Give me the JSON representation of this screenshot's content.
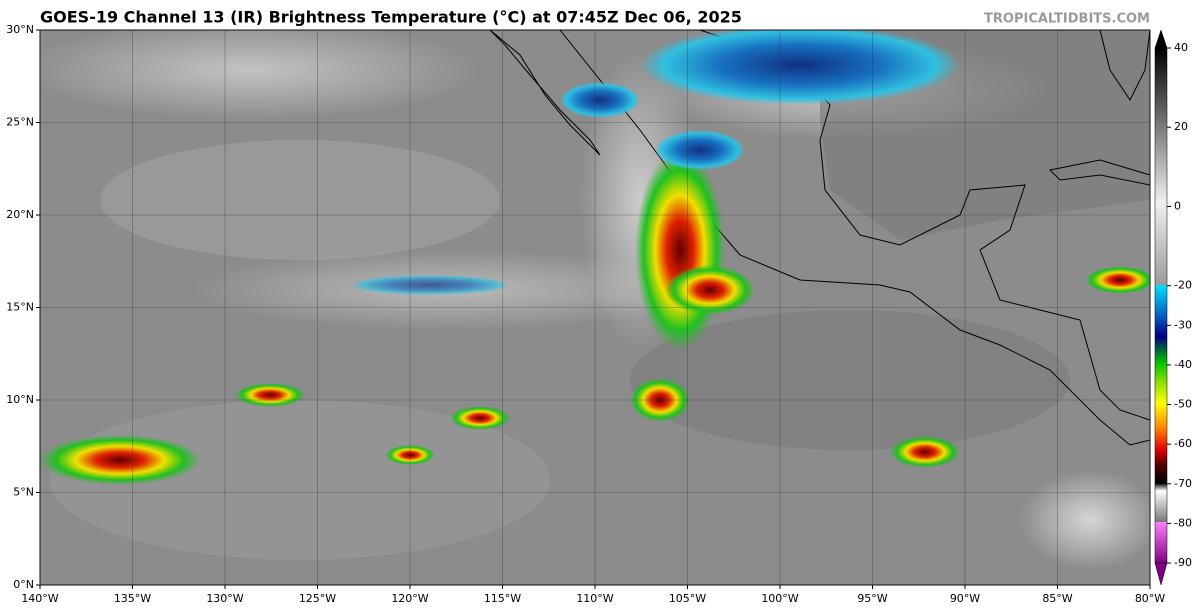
{
  "title": "GOES-19 Channel 13 (IR) Brightness Temperature (°C) at 07:45Z Dec 06, 2025",
  "credit": "TROPICALTIDBITS.COM",
  "map": {
    "xlim": [
      -140,
      -80
    ],
    "xticks": [
      {
        "value": -140,
        "label": "140°W"
      },
      {
        "value": -135,
        "label": "135°W"
      },
      {
        "value": -130,
        "label": "130°W"
      },
      {
        "value": -125,
        "label": "125°W"
      },
      {
        "value": -120,
        "label": "120°W"
      },
      {
        "value": -115,
        "label": "115°W"
      },
      {
        "value": -110,
        "label": "110°W"
      },
      {
        "value": -105,
        "label": "105°W"
      },
      {
        "value": -100,
        "label": "100°W"
      },
      {
        "value": -95,
        "label": "95°W"
      },
      {
        "value": -90,
        "label": "90°W"
      },
      {
        "value": -85,
        "label": "85°W"
      },
      {
        "value": -80,
        "label": "80°W"
      }
    ],
    "ylim": [
      0,
      30
    ],
    "yticks": [
      {
        "value": 0,
        "label": "0°N"
      },
      {
        "value": 5,
        "label": "5°N"
      },
      {
        "value": 10,
        "label": "10°N"
      },
      {
        "value": 15,
        "label": "15°N"
      },
      {
        "value": 20,
        "label": "20°N"
      },
      {
        "value": 25,
        "label": "25°N"
      },
      {
        "value": 30,
        "label": "30°N"
      }
    ],
    "grid": true
  },
  "colorbar": {
    "lim": [
      -90,
      40
    ],
    "ticks": [
      40,
      20,
      0,
      -20,
      -30,
      -40,
      -50,
      -60,
      -70,
      -80,
      -90
    ]
  }
}
